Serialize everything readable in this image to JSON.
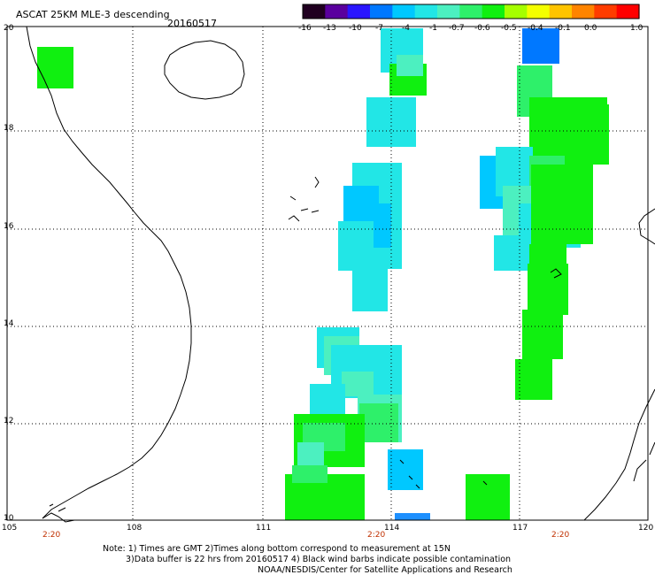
{
  "header": {
    "title": "ASCAT 25KM MLE-3 descending",
    "date": "20160517"
  },
  "colorbar": {
    "colors": [
      "#200020",
      "#5a009e",
      "#2a16ff",
      "#0078ff",
      "#00c8ff",
      "#22e6e6",
      "#4cf0c0",
      "#2ef06a",
      "#10f010",
      "#a6ff00",
      "#f4ff00",
      "#ffc400",
      "#ff8400",
      "#ff3c00",
      "#ff0000"
    ],
    "labels": [
      "-16",
      "-13",
      "-10",
      "-7",
      "-4",
      "-1",
      "-0.7",
      "-0.6",
      "-0.5",
      "-0.4",
      "-0.1",
      "0.0",
      "1.0"
    ]
  },
  "axes": {
    "lat_labels": [
      "20",
      "18",
      "16",
      "14",
      "12",
      "10"
    ],
    "lon_labels": [
      "105",
      "108",
      "111",
      "114",
      "117",
      "120"
    ]
  },
  "time_labels": [
    "2:20",
    "2:20",
    "2:20"
  ],
  "notes": {
    "line1": "Note: 1) Times are GMT 2)Times along bottom correspond to measurement at 15N",
    "line2": "3)Data buffer is 22 hrs from 20160517 4) Black wind barbs indicate possible contamination",
    "line3": "NOAA/NESDIS/Center for Satellite Applications and Research"
  }
}
